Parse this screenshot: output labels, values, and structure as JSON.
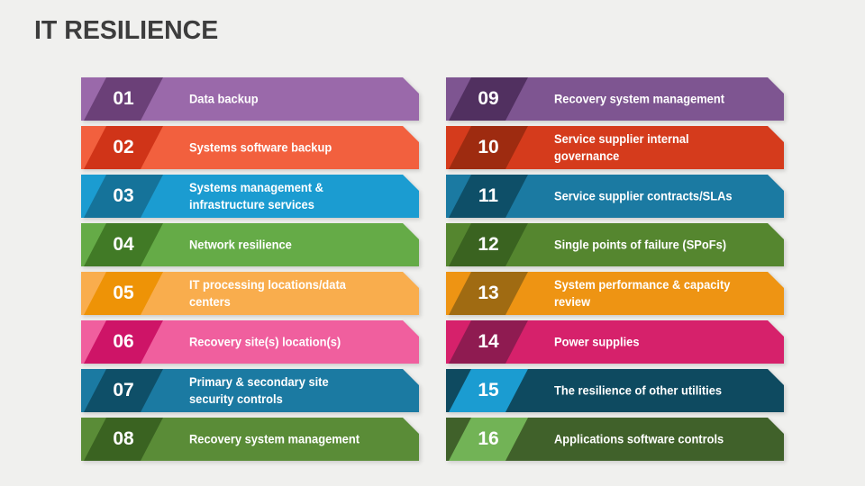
{
  "title": "IT RESILIENCE",
  "background_color": "#f0f0ee",
  "title_color": "#3d3d3d",
  "text_color": "#ffffff",
  "items": [
    {
      "number": "01",
      "label": "Data backup",
      "bar_color": "#9a69aa",
      "number_box_color": "#6b4078"
    },
    {
      "number": "02",
      "label": "Systems software backup",
      "bar_color": "#f2603e",
      "number_box_color": "#d03418"
    },
    {
      "number": "03",
      "label": "Systems management &\ninfrastructure services",
      "bar_color": "#1b9cd1",
      "number_box_color": "#15739a"
    },
    {
      "number": "04",
      "label": "Network resilience",
      "bar_color": "#65ab47",
      "number_box_color": "#417a26"
    },
    {
      "number": "05",
      "label": "IT processing locations/data\ncenters",
      "bar_color": "#f9ad4d",
      "number_box_color": "#ee9306"
    },
    {
      "number": "06",
      "label": "Recovery site(s) location(s)",
      "bar_color": "#f05f9e",
      "number_box_color": "#ce1467"
    },
    {
      "number": "07",
      "label": "Primary & secondary site\nsecurity controls",
      "bar_color": "#1b7aa2",
      "number_box_color": "#0e4f68"
    },
    {
      "number": "08",
      "label": "Recovery system management",
      "bar_color": "#5a8c37",
      "number_box_color": "#3a6321"
    },
    {
      "number": "09",
      "label": "Recovery system management",
      "bar_color": "#7e5591",
      "number_box_color": "#513060"
    },
    {
      "number": "10",
      "label": "Service supplier internal\ngovernance",
      "bar_color": "#d53b1c",
      "number_box_color": "#9e2b10"
    },
    {
      "number": "11",
      "label": "Service supplier contracts/SLAs",
      "bar_color": "#1b7aa2",
      "number_box_color": "#0e4f68"
    },
    {
      "number": "12",
      "label": "Single points of failure (SPoFs)",
      "bar_color": "#55862f",
      "number_box_color": "#3a6320"
    },
    {
      "number": "13",
      "label": "System performance & capacity\nreview",
      "bar_color": "#ee9413",
      "number_box_color": "#a06b12"
    },
    {
      "number": "14",
      "label": "Power supplies",
      "bar_color": "#d6216b",
      "number_box_color": "#8f1b51"
    },
    {
      "number": "15",
      "label": "The resilience of other utilities",
      "bar_color": "#0e4a60",
      "number_box_color": "#1b9cd1"
    },
    {
      "number": "16",
      "label": "Applications software controls",
      "bar_color": "#40612a",
      "number_box_color": "#72b356"
    }
  ]
}
